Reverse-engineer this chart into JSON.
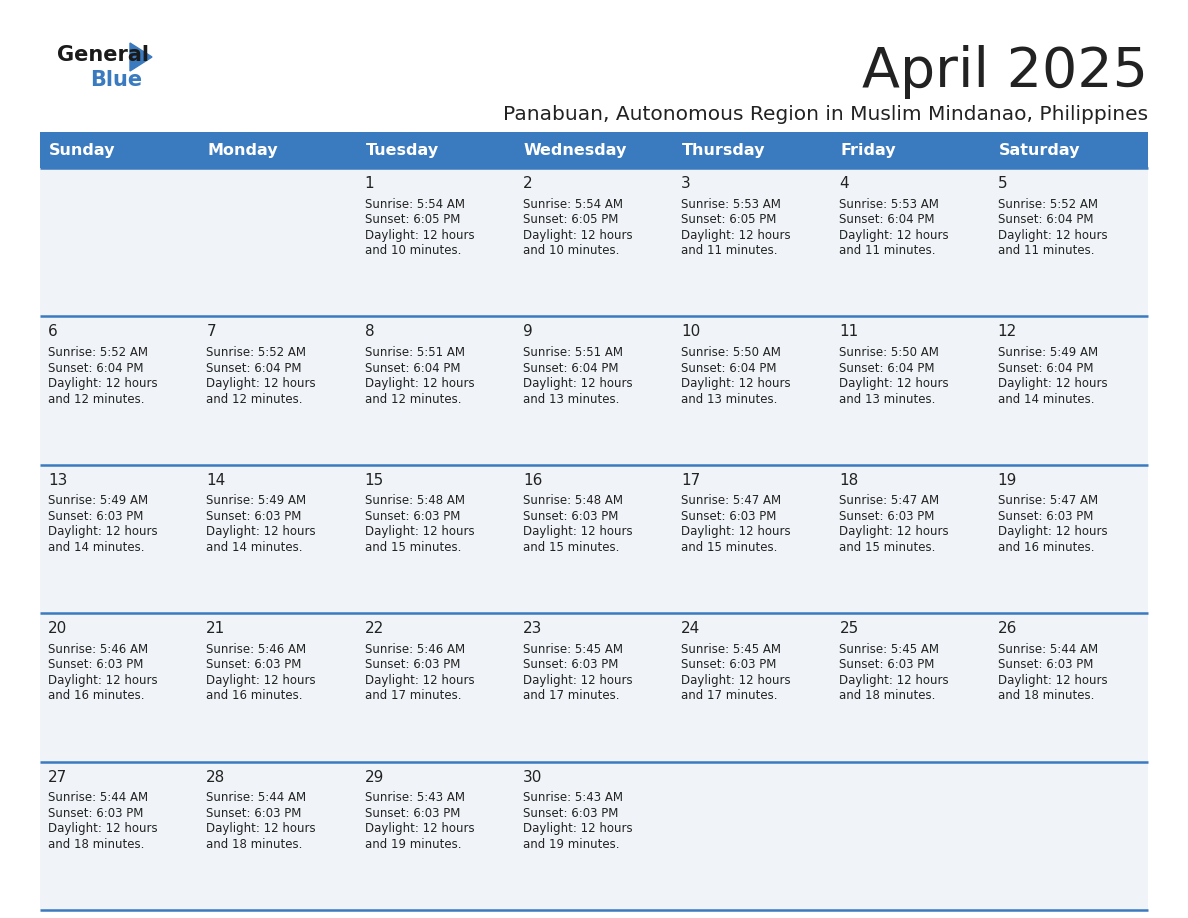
{
  "title": "April 2025",
  "subtitle": "Panabuan, Autonomous Region in Muslim Mindanao, Philippines",
  "days_of_week": [
    "Sunday",
    "Monday",
    "Tuesday",
    "Wednesday",
    "Thursday",
    "Friday",
    "Saturday"
  ],
  "header_bg": "#3a7abf",
  "header_text": "#ffffff",
  "cell_bg": "#f0f4f8",
  "cell_bg_empty": "#f0f4f8",
  "divider_color": "#3a7abf",
  "text_color": "#222222",
  "title_color": "#222222",
  "subtitle_color": "#222222",
  "logo_text_color": "#222222",
  "logo_blue_color": "#3a7abf",
  "calendar": [
    [
      {
        "day": "",
        "sunrise": "",
        "sunset": "",
        "daylight": ""
      },
      {
        "day": "",
        "sunrise": "",
        "sunset": "",
        "daylight": ""
      },
      {
        "day": "1",
        "sunrise": "5:54 AM",
        "sunset": "6:05 PM",
        "daylight": "12 hours\nand 10 minutes."
      },
      {
        "day": "2",
        "sunrise": "5:54 AM",
        "sunset": "6:05 PM",
        "daylight": "12 hours\nand 10 minutes."
      },
      {
        "day": "3",
        "sunrise": "5:53 AM",
        "sunset": "6:05 PM",
        "daylight": "12 hours\nand 11 minutes."
      },
      {
        "day": "4",
        "sunrise": "5:53 AM",
        "sunset": "6:04 PM",
        "daylight": "12 hours\nand 11 minutes."
      },
      {
        "day": "5",
        "sunrise": "5:52 AM",
        "sunset": "6:04 PM",
        "daylight": "12 hours\nand 11 minutes."
      }
    ],
    [
      {
        "day": "6",
        "sunrise": "5:52 AM",
        "sunset": "6:04 PM",
        "daylight": "12 hours\nand 12 minutes."
      },
      {
        "day": "7",
        "sunrise": "5:52 AM",
        "sunset": "6:04 PM",
        "daylight": "12 hours\nand 12 minutes."
      },
      {
        "day": "8",
        "sunrise": "5:51 AM",
        "sunset": "6:04 PM",
        "daylight": "12 hours\nand 12 minutes."
      },
      {
        "day": "9",
        "sunrise": "5:51 AM",
        "sunset": "6:04 PM",
        "daylight": "12 hours\nand 13 minutes."
      },
      {
        "day": "10",
        "sunrise": "5:50 AM",
        "sunset": "6:04 PM",
        "daylight": "12 hours\nand 13 minutes."
      },
      {
        "day": "11",
        "sunrise": "5:50 AM",
        "sunset": "6:04 PM",
        "daylight": "12 hours\nand 13 minutes."
      },
      {
        "day": "12",
        "sunrise": "5:49 AM",
        "sunset": "6:04 PM",
        "daylight": "12 hours\nand 14 minutes."
      }
    ],
    [
      {
        "day": "13",
        "sunrise": "5:49 AM",
        "sunset": "6:03 PM",
        "daylight": "12 hours\nand 14 minutes."
      },
      {
        "day": "14",
        "sunrise": "5:49 AM",
        "sunset": "6:03 PM",
        "daylight": "12 hours\nand 14 minutes."
      },
      {
        "day": "15",
        "sunrise": "5:48 AM",
        "sunset": "6:03 PM",
        "daylight": "12 hours\nand 15 minutes."
      },
      {
        "day": "16",
        "sunrise": "5:48 AM",
        "sunset": "6:03 PM",
        "daylight": "12 hours\nand 15 minutes."
      },
      {
        "day": "17",
        "sunrise": "5:47 AM",
        "sunset": "6:03 PM",
        "daylight": "12 hours\nand 15 minutes."
      },
      {
        "day": "18",
        "sunrise": "5:47 AM",
        "sunset": "6:03 PM",
        "daylight": "12 hours\nand 15 minutes."
      },
      {
        "day": "19",
        "sunrise": "5:47 AM",
        "sunset": "6:03 PM",
        "daylight": "12 hours\nand 16 minutes."
      }
    ],
    [
      {
        "day": "20",
        "sunrise": "5:46 AM",
        "sunset": "6:03 PM",
        "daylight": "12 hours\nand 16 minutes."
      },
      {
        "day": "21",
        "sunrise": "5:46 AM",
        "sunset": "6:03 PM",
        "daylight": "12 hours\nand 16 minutes."
      },
      {
        "day": "22",
        "sunrise": "5:46 AM",
        "sunset": "6:03 PM",
        "daylight": "12 hours\nand 17 minutes."
      },
      {
        "day": "23",
        "sunrise": "5:45 AM",
        "sunset": "6:03 PM",
        "daylight": "12 hours\nand 17 minutes."
      },
      {
        "day": "24",
        "sunrise": "5:45 AM",
        "sunset": "6:03 PM",
        "daylight": "12 hours\nand 17 minutes."
      },
      {
        "day": "25",
        "sunrise": "5:45 AM",
        "sunset": "6:03 PM",
        "daylight": "12 hours\nand 18 minutes."
      },
      {
        "day": "26",
        "sunrise": "5:44 AM",
        "sunset": "6:03 PM",
        "daylight": "12 hours\nand 18 minutes."
      }
    ],
    [
      {
        "day": "27",
        "sunrise": "5:44 AM",
        "sunset": "6:03 PM",
        "daylight": "12 hours\nand 18 minutes."
      },
      {
        "day": "28",
        "sunrise": "5:44 AM",
        "sunset": "6:03 PM",
        "daylight": "12 hours\nand 18 minutes."
      },
      {
        "day": "29",
        "sunrise": "5:43 AM",
        "sunset": "6:03 PM",
        "daylight": "12 hours\nand 19 minutes."
      },
      {
        "day": "30",
        "sunrise": "5:43 AM",
        "sunset": "6:03 PM",
        "daylight": "12 hours\nand 19 minutes."
      },
      {
        "day": "",
        "sunrise": "",
        "sunset": "",
        "daylight": ""
      },
      {
        "day": "",
        "sunrise": "",
        "sunset": "",
        "daylight": ""
      },
      {
        "day": "",
        "sunrise": "",
        "sunset": "",
        "daylight": ""
      }
    ]
  ]
}
